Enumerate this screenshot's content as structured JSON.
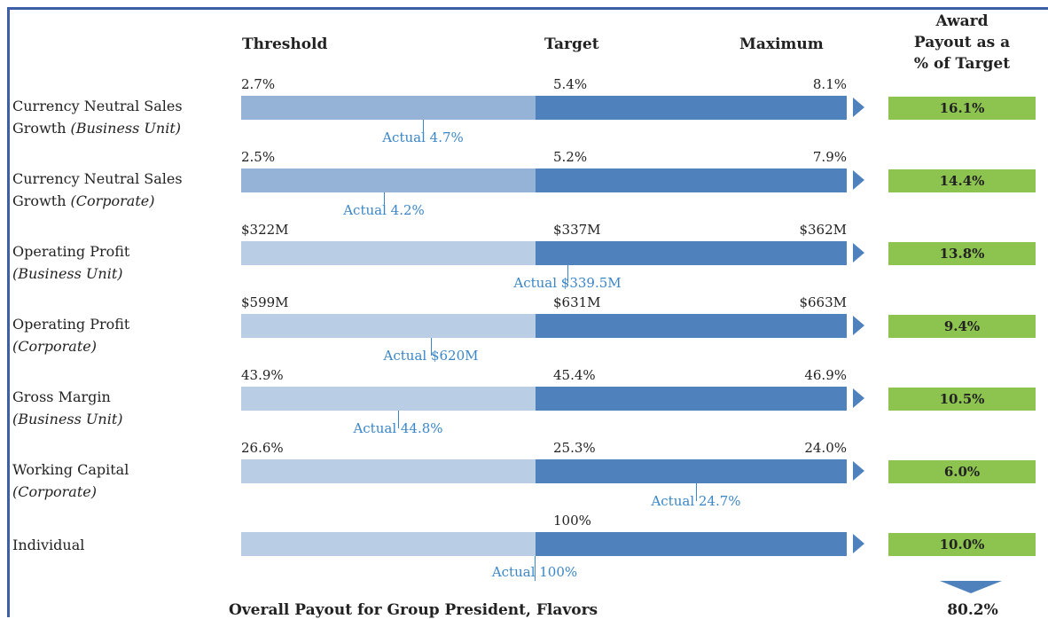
{
  "header": {
    "threshold": "Threshold",
    "target": "Target",
    "maximum": "Maximum",
    "award": [
      "Award",
      "Payout as a",
      "% of Target"
    ]
  },
  "rows": [
    {
      "label": "Currency Neutral Sales",
      "label2": "Growth",
      "qualifier": "(Business Unit)",
      "threshold": "2.7%",
      "target": "5.4%",
      "maximum": "8.1%",
      "actual": "Actual 4.7%",
      "payout": "16.1%"
    },
    {
      "label": "Currency Neutral Sales",
      "label2": "Growth",
      "qualifier": "(Corporate)",
      "threshold": "2.5%",
      "target": "5.2%",
      "maximum": "7.9%",
      "actual": "Actual 4.2%",
      "payout": "14.4%"
    },
    {
      "label": "Operating Profit",
      "qualifier": "(Business Unit)",
      "threshold": "$322M",
      "target": "$337M",
      "maximum": "$362M",
      "actual": "Actual $339.5M",
      "payout": "13.8%"
    },
    {
      "label": "Operating Profit",
      "qualifier": "(Corporate)",
      "threshold": "$599M",
      "target": "$631M",
      "maximum": "$663M",
      "actual": "Actual $620M",
      "payout": "9.4%"
    },
    {
      "label": "Gross Margin",
      "qualifier": "(Business Unit)",
      "threshold": "43.9%",
      "target": "45.4%",
      "maximum": "46.9%",
      "actual": "Actual 44.8%",
      "payout": "10.5%"
    },
    {
      "label": "Working Capital",
      "qualifier": "(Corporate)",
      "threshold": "26.6%",
      "target": "25.3%",
      "maximum": "24.0%",
      "actual": "Actual 24.7%",
      "payout": "6.0%"
    },
    {
      "label": "Individual",
      "target": "100%",
      "actual": "Actual 100%",
      "payout": "10.0%"
    }
  ],
  "footer": {
    "label": "Overall Payout for Group President, Flavors",
    "total": "80.2%"
  }
}
